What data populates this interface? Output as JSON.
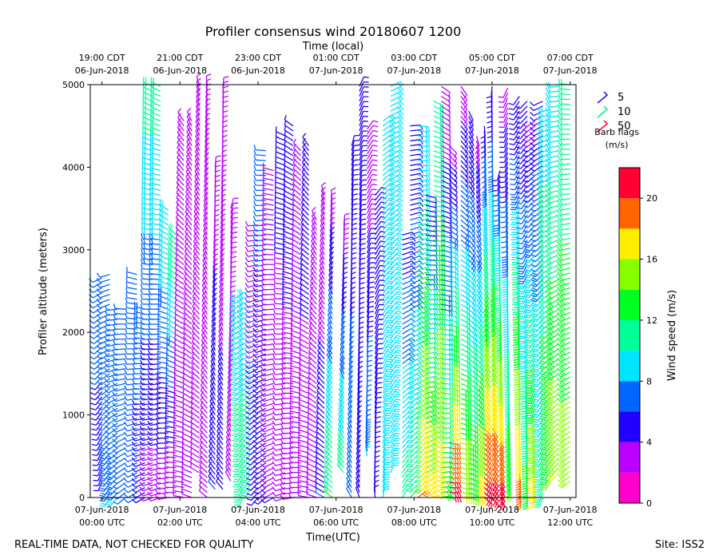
{
  "chart_data": {
    "type": "wind-barb-time-height",
    "title": "Profiler consensus wind 20180607 1200",
    "top_axis_title": "Time (local)",
    "xlabel": "Time(UTC)",
    "ylabel": "Profiler altitude (meters)",
    "ylim": [
      0,
      5000
    ],
    "xlim_hours": [
      -0.3,
      12.15
    ],
    "y_ticks": [
      {
        "value": 0,
        "label": "0"
      },
      {
        "value": 1000,
        "label": "1000"
      },
      {
        "value": 2000,
        "label": "2000"
      },
      {
        "value": 3000,
        "label": "3000"
      },
      {
        "value": 4000,
        "label": "4000"
      },
      {
        "value": 5000,
        "label": "5000"
      }
    ],
    "x_ticks_utc": [
      {
        "hour": 0,
        "line1": "07-Jun-2018",
        "line2": "00:00 UTC"
      },
      {
        "hour": 2,
        "line1": "07-Jun-2018",
        "line2": "02:00 UTC"
      },
      {
        "hour": 4,
        "line1": "07-Jun-2018",
        "line2": "04:00 UTC"
      },
      {
        "hour": 6,
        "line1": "07-Jun-2018",
        "line2": "06:00 UTC"
      },
      {
        "hour": 8,
        "line1": "07-Jun-2018",
        "line2": "08:00 UTC"
      },
      {
        "hour": 10,
        "line1": "07-Jun-2018",
        "line2": "10:00 UTC"
      },
      {
        "hour": 12,
        "line1": "07-Jun-2018",
        "line2": "12:00 UTC"
      }
    ],
    "x_ticks_local": [
      {
        "hour": 0,
        "line1": "19:00 CDT",
        "line2": "06-Jun-2018"
      },
      {
        "hour": 2,
        "line1": "21:00 CDT",
        "line2": "06-Jun-2018"
      },
      {
        "hour": 4,
        "line1": "23:00 CDT",
        "line2": "06-Jun-2018"
      },
      {
        "hour": 6,
        "line1": "01:00 CDT",
        "line2": "07-Jun-2018"
      },
      {
        "hour": 8,
        "line1": "03:00 CDT",
        "line2": "07-Jun-2018"
      },
      {
        "hour": 10,
        "line1": "05:00 CDT",
        "line2": "07-Jun-2018"
      },
      {
        "hour": 12,
        "line1": "07:00 CDT",
        "line2": "07-Jun-2018"
      }
    ],
    "barb_legend": {
      "entries": [
        {
          "label": "5",
          "color": "#2200ff"
        },
        {
          "label": "10",
          "color": "#00ee88"
        },
        {
          "label": "50",
          "color": "#ff0022"
        }
      ],
      "title_line1": "Barb flags",
      "title_line2": "(m/s)"
    },
    "colorbar": {
      "label": "Wind speed (m/s)",
      "range": [
        0,
        22
      ],
      "ticks": [
        0,
        4,
        8,
        12,
        16,
        20
      ],
      "bands": [
        {
          "from": 0,
          "to": 2,
          "color": "#ff00cc"
        },
        {
          "from": 2,
          "to": 4,
          "color": "#bb00ff"
        },
        {
          "from": 4,
          "to": 6,
          "color": "#2200ff"
        },
        {
          "from": 6,
          "to": 8,
          "color": "#0066ff"
        },
        {
          "from": 8,
          "to": 10,
          "color": "#00e5ff"
        },
        {
          "from": 10,
          "to": 12,
          "color": "#00ff99"
        },
        {
          "from": 12,
          "to": 14,
          "color": "#00ff22"
        },
        {
          "from": 14,
          "to": 16,
          "color": "#88ff00"
        },
        {
          "from": 16,
          "to": 18,
          "color": "#ffee00"
        },
        {
          "from": 18,
          "to": 20,
          "color": "#ff6600"
        },
        {
          "from": 20,
          "to": 22,
          "color": "#ff0033"
        }
      ]
    },
    "profiles": [
      {
        "hour": 0.0,
        "z_from": 200,
        "z_to": 2700,
        "speed_bottom": 5,
        "speed_top": 7,
        "dir": 200
      },
      {
        "hour": 0.2,
        "z_from": 0,
        "z_to": 2700,
        "speed_bottom": 8,
        "speed_top": 6,
        "dir": 210
      },
      {
        "hour": 0.4,
        "z_from": 0,
        "z_to": 2300,
        "speed_bottom": 8,
        "speed_top": 6,
        "dir": 220
      },
      {
        "hour": 0.6,
        "z_from": 0,
        "z_to": 2300,
        "speed_bottom": 7,
        "speed_top": 6,
        "dir": 230
      },
      {
        "hour": 0.9,
        "z_from": 0,
        "z_to": 2700,
        "speed_bottom": 7,
        "speed_top": 7,
        "dir": 240
      },
      {
        "hour": 1.1,
        "z_from": 0,
        "z_to": 2300,
        "speed_bottom": 4,
        "speed_top": 8,
        "dir": 240
      },
      {
        "hour": 1.3,
        "z_from": 0,
        "z_to": 5000,
        "speed_bottom": 3,
        "speed_top": 11,
        "dir": 250
      },
      {
        "hour": 1.5,
        "z_from": 0,
        "z_to": 5000,
        "speed_bottom": 3,
        "speed_top": 11,
        "dir": 250
      },
      {
        "hour": 1.7,
        "z_from": 0,
        "z_to": 3500,
        "speed_bottom": 3,
        "speed_top": 10,
        "dir": 260
      },
      {
        "hour": 1.9,
        "z_from": 0,
        "z_to": 3200,
        "speed_bottom": 2,
        "speed_top": 12,
        "dir": 270
      },
      {
        "hour": 2.1,
        "z_from": 0,
        "z_to": 4600,
        "speed_bottom": 3,
        "speed_top": 4,
        "dir": 280
      },
      {
        "hour": 2.3,
        "z_from": 0,
        "z_to": 4600,
        "speed_bottom": 3,
        "speed_top": 4,
        "dir": 290
      },
      {
        "hour": 2.5,
        "z_from": 300,
        "z_to": 5000,
        "speed_bottom": 3,
        "speed_top": 3,
        "dir": 300
      },
      {
        "hour": 2.7,
        "z_from": 0,
        "z_to": 5000,
        "speed_bottom": 3,
        "speed_top": 2,
        "dir": 310
      },
      {
        "hour": 2.9,
        "z_from": 100,
        "z_to": 4000,
        "speed_bottom": 6,
        "speed_top": 3,
        "dir": 320
      },
      {
        "hour": 3.1,
        "z_from": 100,
        "z_to": 5000,
        "speed_bottom": 5,
        "speed_top": 2,
        "dir": 320
      },
      {
        "hour": 3.3,
        "z_from": 200,
        "z_to": 3500,
        "speed_bottom": 2,
        "speed_top": 2,
        "dir": 330
      },
      {
        "hour": 3.6,
        "z_from": 0,
        "z_to": 2500,
        "speed_bottom": 11,
        "speed_top": 9,
        "dir": 200
      },
      {
        "hour": 3.8,
        "z_from": 100,
        "z_to": 2500,
        "speed_bottom": 11,
        "speed_top": 9,
        "dir": 210
      },
      {
        "hour": 4.0,
        "z_from": 0,
        "z_to": 3300,
        "speed_bottom": 5,
        "speed_top": 3,
        "dir": 220
      },
      {
        "hour": 4.2,
        "z_from": 0,
        "z_to": 4200,
        "speed_bottom": 4,
        "speed_top": 7,
        "dir": 230
      },
      {
        "hour": 4.4,
        "z_from": 0,
        "z_to": 4000,
        "speed_bottom": 4,
        "speed_top": 3,
        "dir": 240
      },
      {
        "hour": 4.7,
        "z_from": 0,
        "z_to": 4400,
        "speed_bottom": 2,
        "speed_top": 5,
        "dir": 250
      },
      {
        "hour": 4.9,
        "z_from": 0,
        "z_to": 4500,
        "speed_bottom": 3,
        "speed_top": 5,
        "dir": 260
      },
      {
        "hour": 5.1,
        "z_from": 0,
        "z_to": 4200,
        "speed_bottom": 3,
        "speed_top": 2,
        "dir": 270
      },
      {
        "hour": 5.3,
        "z_from": 0,
        "z_to": 4300,
        "speed_bottom": 3,
        "speed_top": 5,
        "dir": 280
      },
      {
        "hour": 5.5,
        "z_from": 0,
        "z_to": 3400,
        "speed_bottom": 3,
        "speed_top": 2,
        "dir": 290
      },
      {
        "hour": 5.7,
        "z_from": 0,
        "z_to": 3700,
        "speed_bottom": 6,
        "speed_top": 2,
        "dir": 300
      },
      {
        "hour": 5.9,
        "z_from": 0,
        "z_to": 3600,
        "speed_bottom": 12,
        "speed_top": 3,
        "dir": 310
      },
      {
        "hour": 6.2,
        "z_from": 300,
        "z_to": 3300,
        "speed_bottom": 11,
        "speed_top": 3,
        "dir": 320
      },
      {
        "hour": 6.4,
        "z_from": 0,
        "z_to": 4300,
        "speed_bottom": 7,
        "speed_top": 5,
        "dir": 330
      },
      {
        "hour": 6.6,
        "z_from": 0,
        "z_to": 5000,
        "speed_bottom": 5,
        "speed_top": 5,
        "dir": 340
      },
      {
        "hour": 6.8,
        "z_from": 500,
        "z_to": 4500,
        "speed_bottom": 8,
        "speed_top": 2,
        "dir": 350
      },
      {
        "hour": 7.0,
        "z_from": 0,
        "z_to": 3700,
        "speed_bottom": 5,
        "speed_top": 4,
        "dir": 355
      },
      {
        "hour": 7.2,
        "z_from": 0,
        "z_to": 4600,
        "speed_bottom": 9,
        "speed_top": 9,
        "dir": 10
      },
      {
        "hour": 7.4,
        "z_from": 300,
        "z_to": 5000,
        "speed_bottom": 9,
        "speed_top": 9,
        "dir": 20
      },
      {
        "hour": 7.7,
        "z_from": 0,
        "z_to": 3200,
        "speed_bottom": 11,
        "speed_top": 5,
        "dir": 30
      },
      {
        "hour": 7.9,
        "z_from": 0,
        "z_to": 4500,
        "speed_bottom": 12,
        "speed_top": 4,
        "dir": 40
      },
      {
        "hour": 8.1,
        "z_from": 0,
        "z_to": 4500,
        "speed_bottom": 18,
        "speed_top": 8,
        "dir": 50
      },
      {
        "hour": 8.3,
        "z_from": 0,
        "z_to": 3700,
        "speed_bottom": 17,
        "speed_top": 4,
        "dir": 60
      },
      {
        "hour": 8.5,
        "z_from": 0,
        "z_to": 4800,
        "speed_bottom": 17,
        "speed_top": 10,
        "dir": 70
      },
      {
        "hour": 8.7,
        "z_from": 0,
        "z_to": 5000,
        "speed_bottom": 13,
        "speed_top": 2,
        "dir": 80
      },
      {
        "hour": 8.9,
        "z_from": 0,
        "z_to": 4300,
        "speed_bottom": 21,
        "speed_top": 3,
        "dir": 90
      },
      {
        "hour": 9.2,
        "z_from": 0,
        "z_to": 5000,
        "speed_bottom": 16,
        "speed_top": 3,
        "dir": 100
      },
      {
        "hour": 9.4,
        "z_from": 0,
        "z_to": 4700,
        "speed_bottom": 14,
        "speed_top": 4,
        "dir": 110
      },
      {
        "hour": 9.6,
        "z_from": 0,
        "z_to": 4400,
        "speed_bottom": 17,
        "speed_top": 3,
        "dir": 120
      },
      {
        "hour": 9.8,
        "z_from": 0,
        "z_to": 4500,
        "speed_bottom": 21,
        "speed_top": 5,
        "dir": 130
      },
      {
        "hour": 10.0,
        "z_from": 0,
        "z_to": 5000,
        "speed_bottom": 21,
        "speed_top": 4,
        "dir": 140
      },
      {
        "hour": 10.2,
        "z_from": 0,
        "z_to": 4000,
        "speed_bottom": 21,
        "speed_top": 5,
        "dir": 150
      },
      {
        "hour": 10.4,
        "z_from": 100,
        "z_to": 5000,
        "speed_bottom": 14,
        "speed_top": 3,
        "dir": 160
      },
      {
        "hour": 10.7,
        "z_from": 0,
        "z_to": 4900,
        "speed_bottom": 19,
        "speed_top": 4,
        "dir": 170
      },
      {
        "hour": 10.9,
        "z_from": 0,
        "z_to": 4800,
        "speed_bottom": 13,
        "speed_top": 4,
        "dir": 180
      },
      {
        "hour": 11.1,
        "z_from": 0,
        "z_to": 4600,
        "speed_bottom": 17,
        "speed_top": 3,
        "dir": 190
      },
      {
        "hour": 11.3,
        "z_from": 0,
        "z_to": 4800,
        "speed_bottom": 11,
        "speed_top": 5,
        "dir": 200
      },
      {
        "hour": 11.5,
        "z_from": 200,
        "z_to": 4700,
        "speed_bottom": 14,
        "speed_top": 9,
        "dir": 210
      },
      {
        "hour": 11.7,
        "z_from": 300,
        "z_to": 5000,
        "speed_bottom": 16,
        "speed_top": 8,
        "dir": 220
      },
      {
        "hour": 12.0,
        "z_from": 200,
        "z_to": 5000,
        "speed_bottom": 15,
        "speed_top": 10,
        "dir": 230
      }
    ]
  },
  "footer": {
    "disclaimer": "REAL-TIME DATA, NOT CHECKED FOR QUALITY",
    "site": "Site: ISS2"
  }
}
